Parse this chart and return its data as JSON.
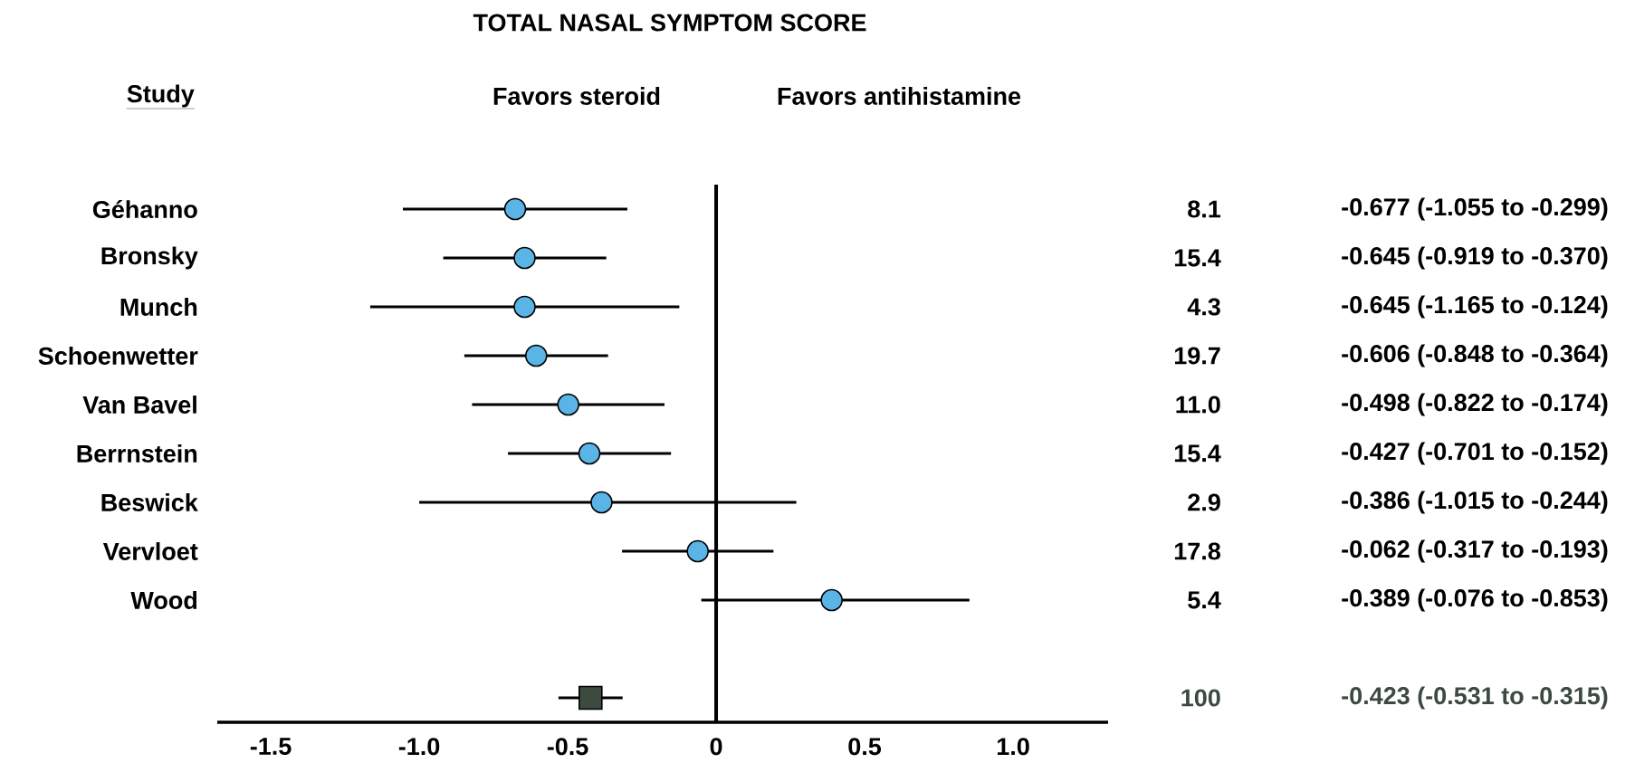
{
  "chart_data": {
    "type": "scatter",
    "orientation": "horizontal",
    "title": "TOTAL NASAL SYMPTOM SCORE",
    "ylabel": "Study",
    "categories": [
      "Géhanno",
      "Bronsky",
      "Munch",
      "Schoenwetter",
      "Van Bavel",
      "Berrnstein",
      "Beswick",
      "Vervloet",
      "Wood",
      null,
      null
    ],
    "series": [
      {
        "color": "#5ab4e6",
        "marker": "circle",
        "values": [
          -0.677,
          -0.645,
          -0.645,
          -0.606,
          -0.498,
          -0.427,
          -0.386,
          -0.062,
          0.389,
          null,
          null
        ],
        "errors": [
          [
            -1.055,
            -0.299
          ],
          [
            -0.919,
            -0.37
          ],
          [
            -1.165,
            -0.124
          ],
          [
            -0.848,
            -0.364
          ],
          [
            -0.822,
            -0.174
          ],
          [
            -0.701,
            -0.152
          ],
          [
            -1.0,
            0.27
          ],
          [
            -0.317,
            0.193
          ],
          [
            -0.05,
            0.853
          ],
          null,
          null
        ]
      },
      {
        "color": "#3d4a40",
        "marker": "square",
        "values": [
          null,
          null,
          null,
          null,
          null,
          null,
          null,
          null,
          null,
          null,
          -0.423
        ],
        "errors": [
          null,
          null,
          null,
          null,
          null,
          null,
          null,
          null,
          null,
          null,
          [
            -0.531,
            -0.315
          ]
        ]
      }
    ],
    "xlim": [
      -1.68,
      1.32
    ],
    "xticks": [
      -1.5,
      {
        "value": -1.0,
        "label": "-1.0"
      },
      -0.5,
      0,
      0.5,
      {
        "value": 1.0,
        "label": "1.0"
      }
    ],
    "ref_lines": [
      {
        "axis": "x",
        "value": 0
      }
    ],
    "annotations": [
      "Favors steroid",
      "Favors antihistamine",
      "8.1",
      "-0.677 (-1.055 to -0.299)",
      "15.4",
      "-0.645 (-0.919 to -0.370)",
      "4.3",
      "-0.645 (-1.165 to -0.124)",
      "19.7",
      "-0.606 (-0.848 to -0.364)",
      "11.0",
      "-0.498 (-0.822 to -0.174)",
      "15.4",
      "-0.427 (-0.701 to -0.152)",
      "2.9",
      "-0.386 (-1.015 to -0.244)",
      "17.8",
      "-0.062 (-0.317 to -0.193)",
      "5.4",
      "-0.389 (-0.076 to -0.853)",
      "100",
      "-0.423 (-0.531 to -0.315)"
    ]
  }
}
